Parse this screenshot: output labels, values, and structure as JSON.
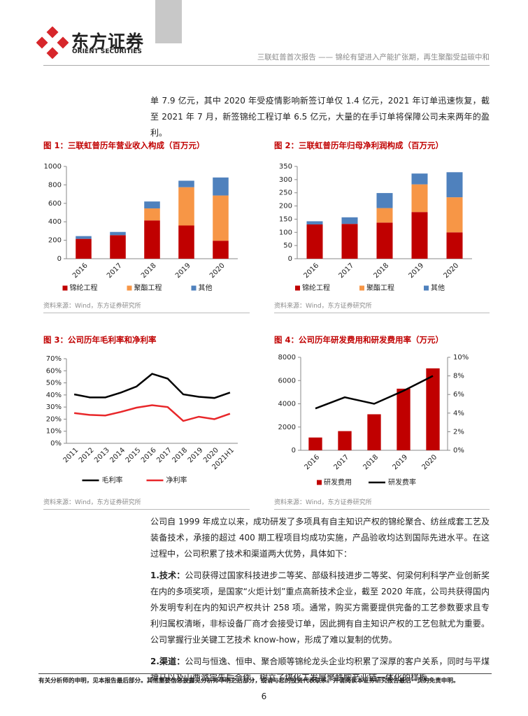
{
  "header": {
    "logo_cn": "东方证券",
    "logo_en": "ORIENT SECURITIES",
    "report_title": "三联虹普首次报告 —— 锦纶有望进入产能扩张期，再生聚酯受益碳中和"
  },
  "intro": "单 7.9 亿元，其中 2020 年受疫情影响新签订单仅 1.4 亿元，2021 年订单迅速恢复，截至 2021 年 7 月，新签锦纶工程订单 6.5 亿元，大量的在手订单将保障公司未来两年的盈利。",
  "figures": [
    {
      "title": "图 1：三联虹普历年营业收入构成（百万元）",
      "source": "资料来源：Wind，东方证券研究所",
      "chart_data": {
        "type": "bar",
        "stacked": true,
        "categories": [
          "2016",
          "2017",
          "2018",
          "2019",
          "2020"
        ],
        "series": [
          {
            "name": "锦纶工程",
            "color": "#c00000",
            "values": [
              215,
              255,
              415,
              360,
              195
            ]
          },
          {
            "name": "聚酯工程",
            "color": "#f79646",
            "values": [
              0,
              0,
              130,
              415,
              490
            ]
          },
          {
            "name": "其他",
            "color": "#4f81bd",
            "values": [
              30,
              35,
              75,
              70,
              195
            ]
          }
        ],
        "ylim": [
          0,
          1000
        ],
        "yticks": [
          0,
          200,
          400,
          600,
          800,
          1000
        ]
      }
    },
    {
      "title": "图 2：三联虹普历年归母净利润构成（百万元）",
      "source": "资料来源：Wind，东方证券研究所",
      "chart_data": {
        "type": "bar",
        "stacked": true,
        "categories": [
          "2016",
          "2017",
          "2018",
          "2019",
          "2020"
        ],
        "series": [
          {
            "name": "锦纶工程",
            "color": "#c00000",
            "values": [
              130,
              132,
              137,
              177,
              100
            ]
          },
          {
            "name": "聚酯工程",
            "color": "#f79646",
            "values": [
              0,
              0,
              55,
              105,
              133
            ]
          },
          {
            "name": "其他",
            "color": "#4f81bd",
            "values": [
              12,
              25,
              57,
              41,
              95
            ]
          }
        ],
        "ylim": [
          0,
          350
        ],
        "yticks": [
          0,
          50,
          100,
          150,
          200,
          250,
          300,
          350
        ]
      }
    },
    {
      "title": "图 3：公司历年毛利率和净利率",
      "source": "资料来源：Wind，东方证券研究所",
      "chart_data": {
        "type": "line",
        "categories": [
          "2011",
          "2012",
          "2013",
          "2014",
          "2015",
          "2016",
          "2017",
          "2018",
          "2019",
          "2020",
          "2021H1"
        ],
        "series": [
          {
            "name": "毛利率",
            "color": "#000000",
            "values": [
              40.5,
              38,
              38,
              42,
              47,
              57.5,
              53.5,
              40.5,
              38.5,
              37.5,
              42
            ]
          },
          {
            "name": "净利率",
            "color": "#e8272a",
            "values": [
              25,
              23.5,
              23,
              26,
              29.5,
              31.5,
              30,
              18.5,
              22,
              20,
              24.5
            ]
          }
        ],
        "ylim": [
          0,
          70
        ],
        "yticks": [
          {
            "value": 0,
            "label": "0%"
          },
          {
            "value": 10,
            "label": "10%"
          },
          {
            "value": 20,
            "label": "20%"
          },
          {
            "value": 30,
            "label": "30%"
          },
          {
            "value": 40,
            "label": "40%"
          },
          {
            "value": 50,
            "label": "50%"
          },
          {
            "value": 60,
            "label": "60%"
          },
          {
            "value": 70,
            "label": "70%"
          }
        ]
      }
    },
    {
      "title": "图 4：公司历年研发费用和研发费用率（万元）",
      "source": "资料来源：Wind，东方证券研究所",
      "chart_data": {
        "type": "bar",
        "categories": [
          "2016",
          "2017",
          "2018",
          "2019",
          "2020"
        ],
        "series": [
          {
            "name": "研发费用",
            "color": "#c00000",
            "values": [
              1100,
              1650,
              3100,
              5300,
              7050
            ]
          },
          {
            "name": "研发费率",
            "color": "#000000",
            "axis": "y2",
            "values": [
              4.5,
              5.7,
              5.0,
              6.4,
              8.0
            ]
          }
        ],
        "ylim": [
          0,
          8000
        ],
        "yticks": [
          0,
          2000,
          4000,
          6000,
          8000
        ],
        "y2lim": [
          0,
          10
        ],
        "y2ticks": [
          {
            "value": 0,
            "label": "0%"
          },
          {
            "value": 2,
            "label": "2%"
          },
          {
            "value": 4,
            "label": "4%"
          },
          {
            "value": 6,
            "label": "6%"
          },
          {
            "value": 8,
            "label": "8%"
          },
          {
            "value": 10,
            "label": "10%"
          }
        ]
      }
    }
  ],
  "body": {
    "paragraph": "公司自 1999 年成立以来，成功研发了多项具有自主知识产权的锦纶聚合、纺丝成套工艺及装备技术，承接的超过 400 期工程项目均成功实施，产品验收均达到国际先进水平。在这过程中，公司积累了技术和渠道两大优势，具体如下：",
    "points": [
      {
        "label": "1.技术：",
        "text": "公司获得过国家科技进步二等奖、部级科技进步二等奖、何梁何利科学产业创新奖在内的多项奖项，是国家“火炬计划”重点高新技术企业，截至 2020 年底，公司共获得国内外发明专利在内的知识产权共计 258 项。通常，购买方需要提供完备的工艺参数要求且专利归属权清晰，非标设备厂商才会接受订单，因此拥有自主知识产权的工艺包就尤为重要。公司掌握行业关键工艺技术 know-how，形成了难以复制的优势。"
      },
      {
        "label": "2.渠道：",
        "text": "公司与恒逸、恒申、聚合顺等锦纶龙头企业均积累了深厚的客户关系，同时与平煤神马以及山西潞宝先后合作，树立了煤化工发展聚酰胺产业链一体化的样板。"
      }
    ]
  },
  "footer": {
    "disclaimer": "有关分析师的申明，见本报告最后部分。其他重要信息披露见分析师申明之后部分，或请与您的投资代表联系。并请阅读本证券研究报告最后一页的免责申明。",
    "page": "6"
  }
}
